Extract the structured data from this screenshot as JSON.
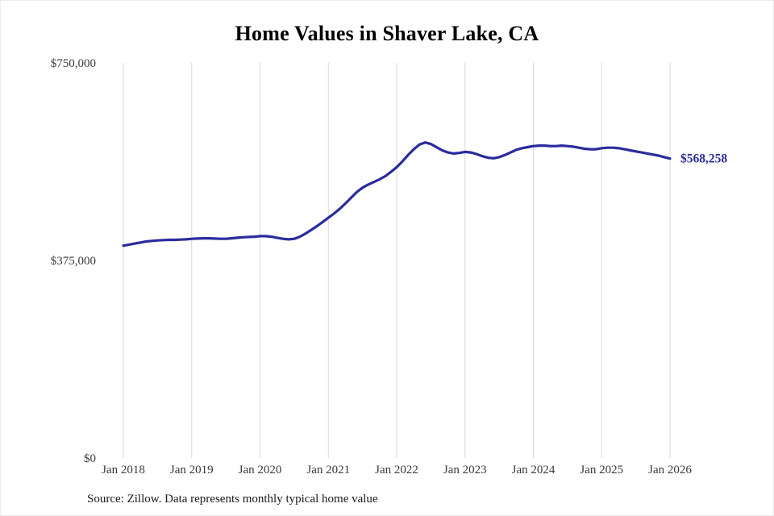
{
  "title": "Home Values in Shaver Lake, CA",
  "source_note": "Source: Zillow. Data represents monthly typical home value",
  "colors": {
    "line": "#2b2b9d",
    "end_label": "#2b2b9d",
    "gridline": "#d8d8d8",
    "tick_text": "#3a3a3a",
    "title_text": "#000000",
    "background": "#ffffff"
  },
  "chart_data": {
    "type": "line",
    "title": "Home Values in Shaver Lake, CA",
    "xlabel": "",
    "ylabel": "",
    "ylim": [
      0,
      750000
    ],
    "grid": "vertical-only",
    "legend": "none",
    "y_ticks": [
      {
        "label": "$0",
        "value": 0
      },
      {
        "label": "$375,000",
        "value": 375000
      },
      {
        "label": "$750,000",
        "value": 750000
      }
    ],
    "x_tick_labels": [
      "Jan 2018",
      "Jan 2019",
      "Jan 2020",
      "Jan 2021",
      "Jan 2022",
      "Jan 2023",
      "Jan 2024",
      "Jan 2025",
      "Jan 2026"
    ],
    "x_monthly_start": "2018-01",
    "x_monthly_end": "2026-01",
    "annotation": {
      "text": "$568,258",
      "position": "end-of-line"
    },
    "series": [
      {
        "name": "Monthly typical home value",
        "values": [
          403000,
          405000,
          407000,
          409000,
          411000,
          412000,
          413000,
          413500,
          414000,
          414000,
          414500,
          415000,
          416000,
          416500,
          417000,
          417000,
          416500,
          416000,
          416000,
          417000,
          418000,
          419000,
          419500,
          420000,
          421000,
          421000,
          420000,
          418000,
          416000,
          415000,
          416000,
          420000,
          426000,
          433000,
          440000,
          448000,
          456000,
          464000,
          473000,
          483000,
          494000,
          505000,
          513000,
          519000,
          524000,
          529000,
          535000,
          543000,
          552000,
          563000,
          575000,
          586000,
          595000,
          599000,
          596000,
          590000,
          584000,
          580000,
          578000,
          579000,
          581000,
          580000,
          577000,
          573000,
          570000,
          569000,
          571000,
          575000,
          580000,
          585000,
          588000,
          590000,
          592000,
          593000,
          593000,
          592000,
          592000,
          593000,
          592000,
          591000,
          589000,
          587000,
          586000,
          586000,
          588000,
          589000,
          589000,
          588000,
          586000,
          584000,
          582000,
          580000,
          578000,
          576000,
          574000,
          571000,
          568258
        ]
      }
    ]
  }
}
